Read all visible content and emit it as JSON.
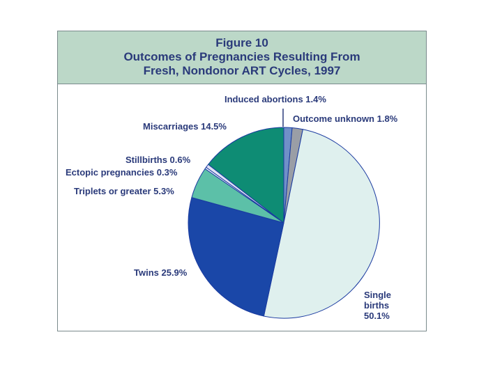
{
  "figure": {
    "number": "Figure 10",
    "title_line1": "Outcomes of Pregnancies Resulting From",
    "title_line2": "Fresh, Nondonor ART Cycles, 1997"
  },
  "chart_data": {
    "type": "pie",
    "title": "Figure 10 Outcomes of Pregnancies Resulting From Fresh, Nondonor ART Cycles, 1997",
    "unit": "%",
    "slices": [
      {
        "label": "Induced abortions 1.4%",
        "value": 1.4,
        "color": "#7090c8"
      },
      {
        "label": "Outcome unknown 1.8%",
        "value": 1.8,
        "color": "#9a9ea6"
      },
      {
        "label": "Single births 50.1%",
        "value": 50.1,
        "color": "#dff0ee"
      },
      {
        "label": "Twins 25.9%",
        "value": 25.9,
        "color": "#1a47a8"
      },
      {
        "label": "Triplets or greater 5.3%",
        "value": 5.3,
        "color": "#5cc0a8"
      },
      {
        "label": "Ectopic pregnancies 0.3%",
        "value": 0.3,
        "color": "#f2f4ff"
      },
      {
        "label": "Stillbirths 0.6%",
        "value": 0.6,
        "color": "#e0e2f4"
      },
      {
        "label": "Miscarriages 14.5%",
        "value": 14.5,
        "color": "#0e8c74"
      }
    ],
    "start_angle": "12 o'clock",
    "direction": "clockwise",
    "outline_color": "#1a3aa0"
  },
  "labels": {
    "induced": "Induced abortions 1.4%",
    "unknown": "Outcome unknown 1.8%",
    "miscarriages": "Miscarriages 14.5%",
    "stillbirths": "Stillbirths 0.6%",
    "ectopic": "Ectopic pregnancies 0.3%",
    "triplets": "Triplets or greater 5.3%",
    "twins": "Twins 25.9%",
    "single_line1": "Single",
    "single_line2": "births",
    "single_line3": "50.1%"
  }
}
